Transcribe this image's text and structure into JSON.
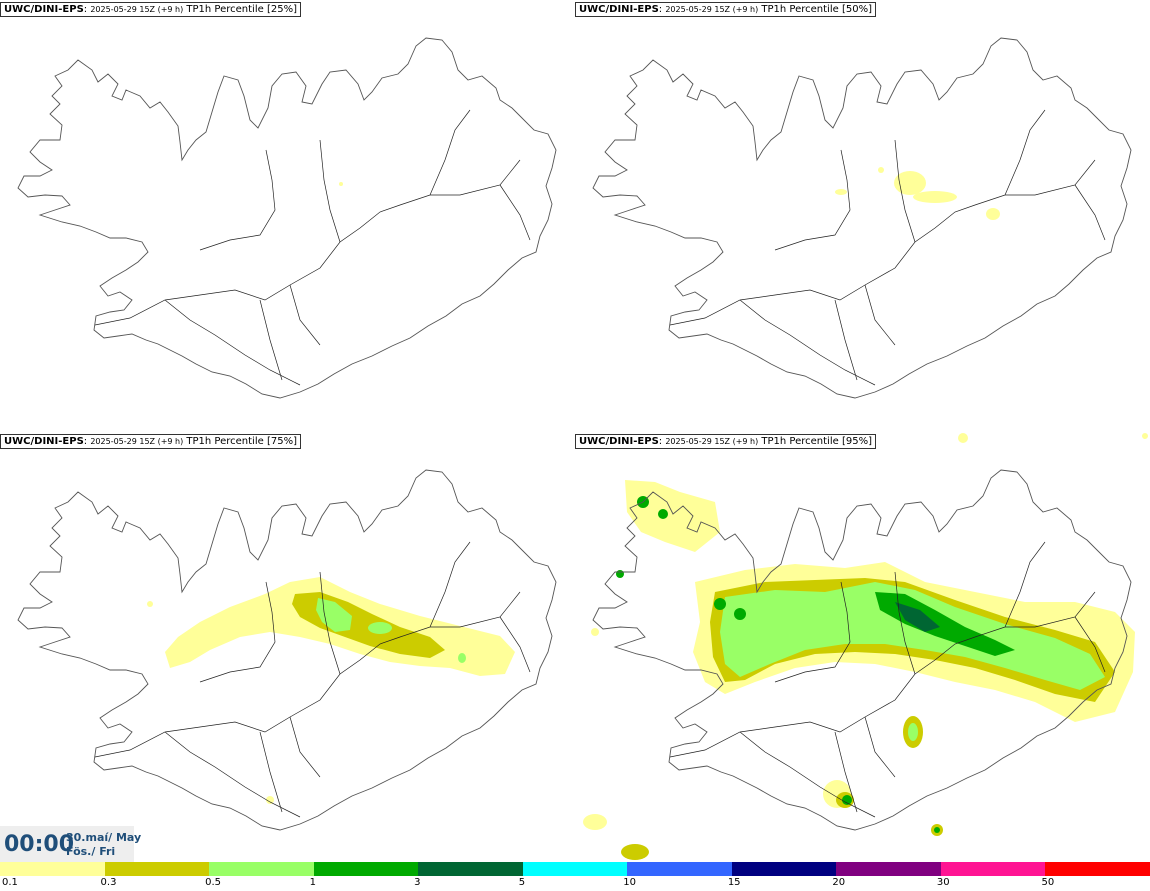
{
  "panels": [
    {
      "model": "UWC/DINI-EPS",
      "run": "2025-05-29 15Z (+9 h)",
      "field": "TP1h Percentile [25%]",
      "percentile": 25
    },
    {
      "model": "UWC/DINI-EPS",
      "run": "2025-05-29 15Z (+9 h)",
      "field": "TP1h Percentile [50%]",
      "percentile": 50
    },
    {
      "model": "UWC/DINI-EPS",
      "run": "2025-05-29 15Z (+9 h)",
      "field": "TP1h Percentile [75%]",
      "percentile": 75
    },
    {
      "model": "UWC/DINI-EPS",
      "run": "2025-05-29 15Z (+9 h)",
      "field": "TP1h Percentile [95%]",
      "percentile": 95
    }
  ],
  "time": {
    "hhmm": "00:00",
    "date": "30.maí/ May",
    "weekday": "Fös./ Fri"
  },
  "colorbar": {
    "colors": [
      "#ffff99",
      "#cccc00",
      "#99ff66",
      "#00aa00",
      "#006633",
      "#00ffff",
      "#3366ff",
      "#000080",
      "#800080",
      "#ff1493",
      "#ff0000"
    ],
    "labels": [
      "0.1",
      "0.3",
      "0.5",
      "1",
      "3",
      "5",
      "10",
      "15",
      "20",
      "30",
      "50"
    ]
  },
  "map_style": {
    "land_outline": "#555555",
    "road": "#222222",
    "sea": "#ffffff"
  }
}
